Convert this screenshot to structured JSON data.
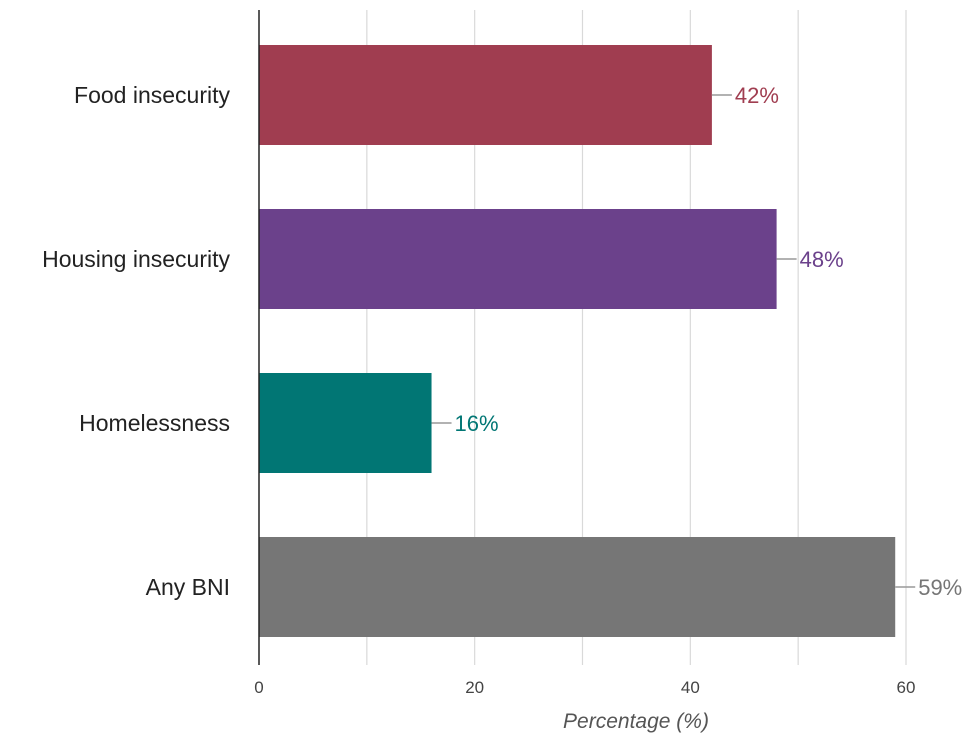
{
  "chart_data": {
    "type": "bar",
    "orientation": "horizontal",
    "categories": [
      "Food insecurity",
      "Housing insecurity",
      "Homelessness",
      "Any BNI"
    ],
    "values": [
      42,
      48,
      16,
      59
    ],
    "data_labels": [
      "42%",
      "48%",
      "16%",
      "59%"
    ],
    "colors": [
      "#a03d50",
      "#6b418b",
      "#017674",
      "#767676"
    ],
    "title": "",
    "xlabel": "Percentage (%)",
    "ylabel": "",
    "xlim": [
      0,
      60
    ],
    "xticks": [
      0,
      20,
      40,
      60
    ],
    "xtick_labels": [
      "0",
      "20",
      "40",
      "60"
    ],
    "minor_gridlines": [
      10,
      30,
      50
    ],
    "grid": true,
    "legend": "none"
  }
}
